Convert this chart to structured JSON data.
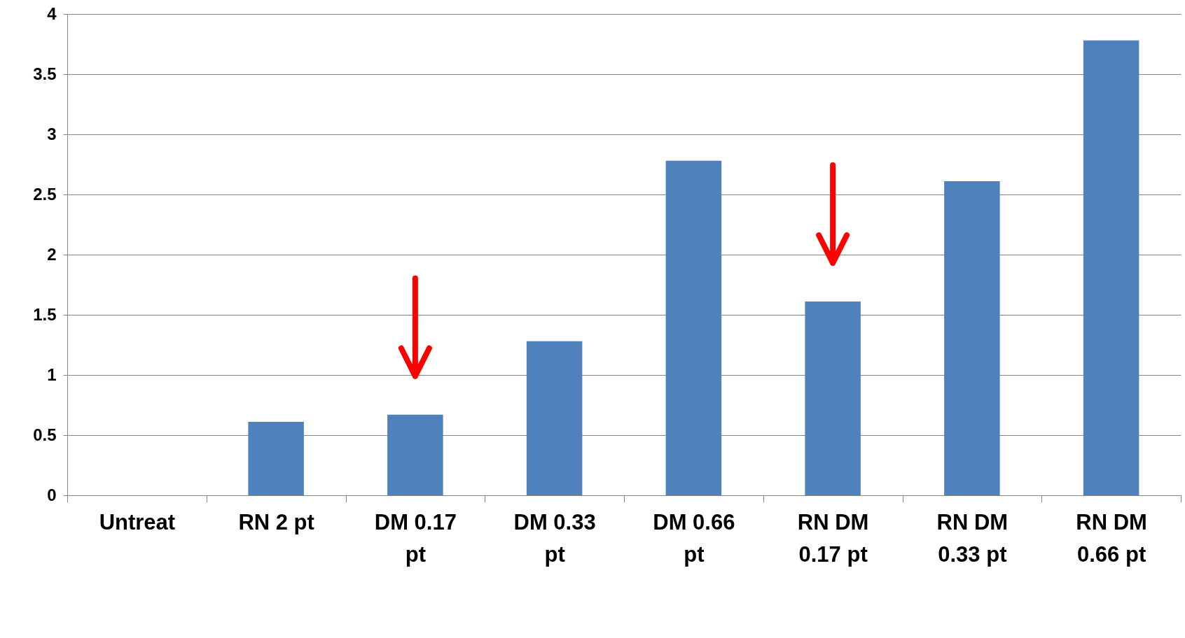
{
  "chart_data": {
    "type": "bar",
    "categories": [
      "Untreat",
      "RN 2 pt",
      "DM 0.17 pt",
      "DM 0.33 pt",
      "DM 0.66 pt",
      "RN DM 0.17 pt",
      "RN DM 0.33 pt",
      "RN DM 0.66 pt"
    ],
    "values": [
      0,
      0.61,
      0.67,
      1.28,
      2.78,
      1.61,
      2.61,
      3.78
    ],
    "color": "#4f81bd",
    "ylim": [
      0,
      4
    ],
    "yticks": [
      0,
      0.5,
      1,
      1.5,
      2,
      2.5,
      3,
      3.5,
      4
    ],
    "grid": "y"
  }
}
